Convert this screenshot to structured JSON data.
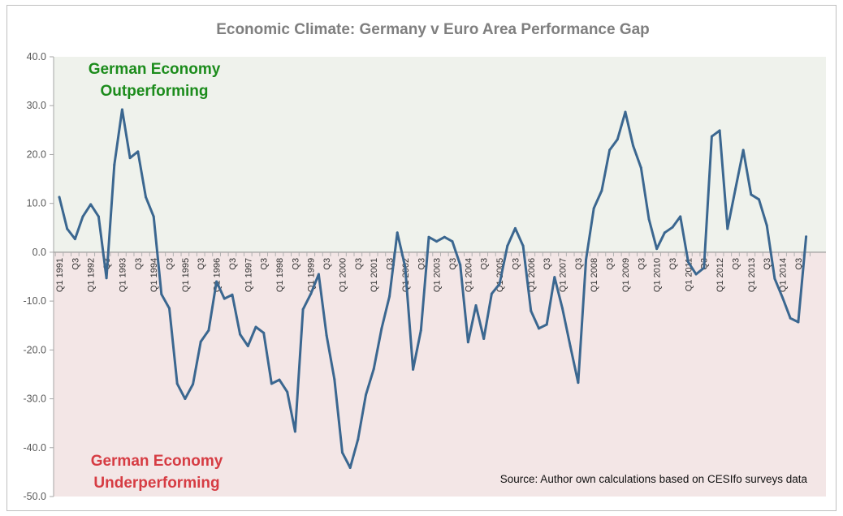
{
  "chart_data": {
    "type": "line",
    "title": "Economic Climate: Germany v Euro Area Performance Gap",
    "ylim": [
      -50,
      40
    ],
    "yticks": [
      "40.0",
      "30.0",
      "20.0",
      "10.0",
      "0.0",
      "-10.0",
      "-20.0",
      "-30.0",
      "-40.0",
      "-50.0"
    ],
    "ytick_values": [
      40,
      30,
      20,
      10,
      0,
      -10,
      -20,
      -30,
      -40,
      -50
    ],
    "tick_labels": [
      "Q1 1991",
      "",
      "Q3",
      "",
      "Q1 1992",
      "",
      "Q3",
      "",
      "Q1 1993",
      "",
      "Q3",
      "",
      "Q1 1994",
      "",
      "Q3",
      "",
      "Q1 1995",
      "",
      "Q3",
      "",
      "Q1 1996",
      "",
      "Q3",
      "",
      "Q1 1997",
      "",
      "Q3",
      "",
      "Q1 1998",
      "",
      "Q3",
      "",
      "Q1 1999",
      "",
      "Q3",
      "",
      "Q1 2000",
      "",
      "Q3",
      "",
      "Q1 2001",
      "",
      "Q3",
      "",
      "Q1 2002",
      "",
      "Q3",
      "",
      "Q1 2003",
      "",
      "Q3",
      "",
      "Q1 2004",
      "",
      "Q3",
      "",
      "Q1 2005",
      "",
      "Q3",
      "",
      "Q1 2006",
      "",
      "Q3",
      "",
      "Q1 2007",
      "",
      "Q3",
      "",
      "Q1 2008",
      "",
      "Q3",
      "",
      "Q1 2009",
      "",
      "Q3",
      "",
      "Q1 2010",
      "",
      "Q3",
      "",
      "Q1 2011",
      "",
      "Q3",
      "",
      "Q1 2012",
      "",
      "Q3",
      "",
      "Q1 2013",
      "",
      "Q3",
      "",
      "Q1 2014",
      "",
      "Q3",
      ""
    ],
    "values": [
      11.3,
      4.8,
      2.7,
      7.3,
      9.8,
      7.3,
      -5.3,
      17.9,
      29.2,
      19.3,
      20.6,
      11.3,
      7.3,
      -8.6,
      -11.5,
      -26.9,
      -30.0,
      -27.0,
      -18.3,
      -16.0,
      -6.0,
      -9.5,
      -8.7,
      -16.8,
      -19.2,
      -15.3,
      -16.5,
      -26.9,
      -26.1,
      -28.6,
      -36.7,
      -11.7,
      -8.5,
      -4.5,
      -17.0,
      -26.0,
      -41.0,
      -44.1,
      -38.3,
      -29.2,
      -23.9,
      -15.6,
      -9.0,
      4.0,
      -3.0,
      -24.0,
      -16.0,
      3.1,
      2.2,
      3.1,
      2.2,
      -2.6,
      -18.4,
      -10.9,
      -17.7,
      -8.5,
      -6.5,
      1.3,
      4.9,
      1.3,
      -12.0,
      -15.6,
      -14.8,
      -5.1,
      -11.5,
      -19.2,
      -26.7,
      -1.5,
      9.0,
      12.6,
      20.9,
      23.1,
      28.7,
      21.8,
      17.3,
      6.8,
      0.7,
      4.0,
      5.1,
      7.3,
      -2.0,
      -4.5,
      -3.2,
      23.7,
      24.9,
      4.8,
      12.9,
      20.9,
      11.8,
      10.8,
      5.5,
      -5.4,
      -9.3,
      -13.5,
      -14.3,
      3.2
    ],
    "grid": false,
    "legend": "none",
    "annotations": {
      "top": [
        "German Economy",
        "Outperforming"
      ],
      "bottom": [
        "German Economy",
        "Underperforming"
      ],
      "source": "Source: Author own calculations based on CESIfo surveys data"
    },
    "colors": {
      "line": "#3b6790",
      "positive_band": "#eff2ec",
      "negative_band": "#f3e6e6",
      "top_annotation": "#1c8c1c",
      "bottom_annotation": "#d63c43",
      "title": "#7f7f7f"
    }
  }
}
